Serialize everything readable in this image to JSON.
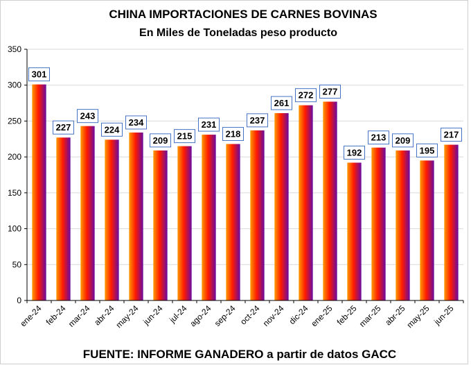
{
  "chart_data": {
    "type": "bar",
    "title": "CHINA IMPORTACIONES DE CARNES BOVINAS",
    "subtitle": "En Miles de Toneladas peso producto",
    "footer": "FUENTE: INFORME GANADERO a partir de datos GACC",
    "categories": [
      "ene-24",
      "feb-24",
      "mar-24",
      "abr-24",
      "may-24",
      "jun-24",
      "jul-24",
      "ago-24",
      "sep-24",
      "oct-24",
      "nov-24",
      "dic-24",
      "ene-25",
      "feb-25",
      "mar-25",
      "abr-25",
      "may-25",
      "jun-25"
    ],
    "values": [
      301,
      227,
      243,
      224,
      234,
      209,
      215,
      231,
      218,
      237,
      261,
      272,
      277,
      192,
      213,
      209,
      195,
      217
    ],
    "ylim": [
      0,
      350
    ],
    "yticks": [
      0,
      50,
      100,
      150,
      200,
      250,
      300,
      350
    ],
    "grid": true,
    "legend": "none",
    "colors": {
      "bar_left": "#ff9a00",
      "bar_mid": "#ff1a00",
      "bar_right": "#6a0aa0",
      "label_border": "#4472c4",
      "grid": "#d9d9d9"
    }
  }
}
